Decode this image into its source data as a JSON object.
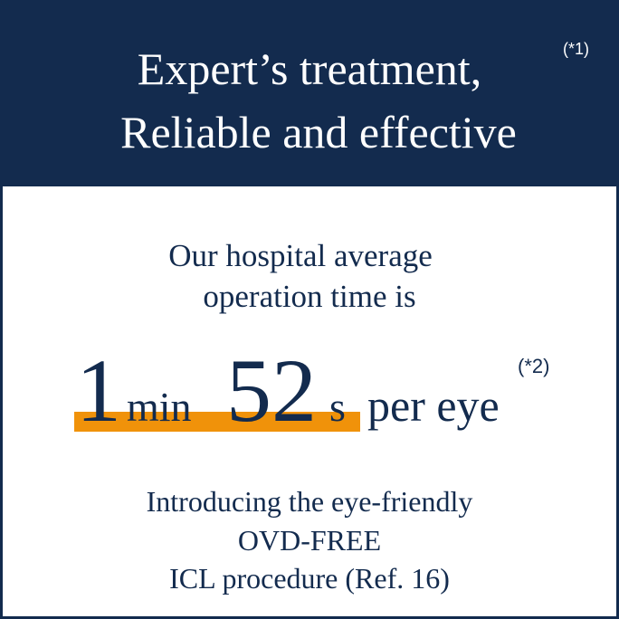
{
  "header": {
    "title_lines": [
      "Expert’s treatment,",
      "Reliable and effective"
    ],
    "note": "(*1)"
  },
  "body": {
    "intro_lines": [
      "Our hospital average",
      "operation time is"
    ],
    "stat": {
      "minutes": "1",
      "minutes_unit": "min",
      "seconds": "52",
      "seconds_unit": "s",
      "suffix": "per eye",
      "note": "(*2)"
    },
    "footer_lines": [
      "Introducing the eye-friendly",
      "OVD-FREE",
      "ICL procedure (Ref. 16)"
    ]
  }
}
